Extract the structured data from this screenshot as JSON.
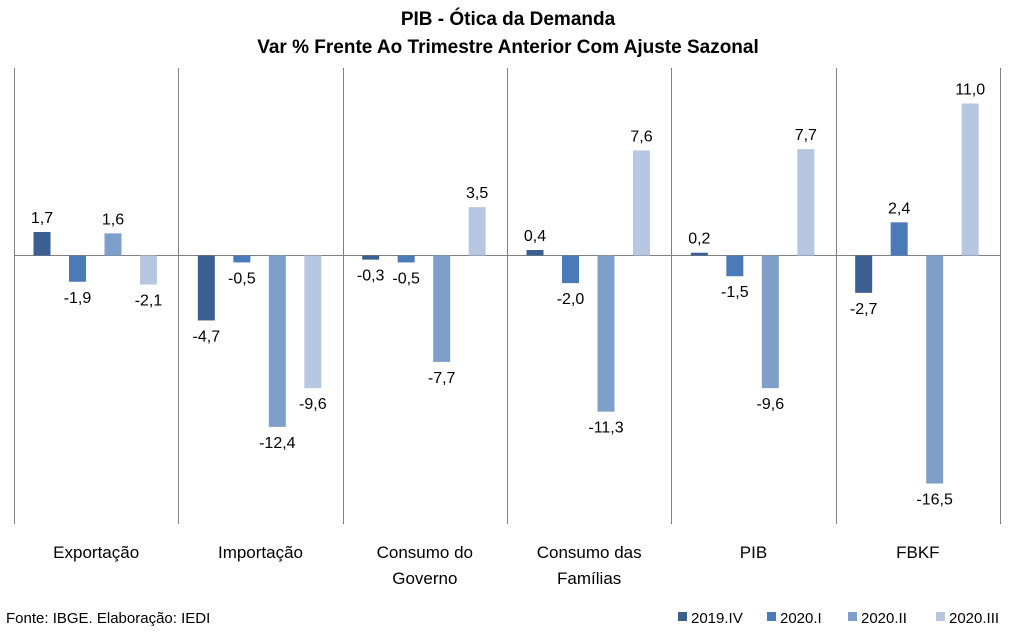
{
  "chart_data": {
    "type": "bar",
    "title": "PIB - Ótica da Demanda",
    "subtitle": "Var % Frente Ao Trimestre Anterior Com Ajuste Sazonal",
    "categories": [
      [
        "Exportação"
      ],
      [
        "Importação"
      ],
      [
        "Consumo do",
        "Governo"
      ],
      [
        "Consumo das",
        "Famílias"
      ],
      [
        "PIB"
      ],
      [
        "FBKF"
      ]
    ],
    "series": [
      {
        "name": "2019.IV",
        "color": "#3b5f91",
        "values": [
          1.7,
          -4.7,
          -0.3,
          0.4,
          0.2,
          -2.7
        ],
        "labels": [
          "1,7",
          "-4,7",
          "-0,3",
          "0,4",
          "0,2",
          "-2,7"
        ]
      },
      {
        "name": "2020.I",
        "color": "#4a7ab8",
        "values": [
          -1.9,
          -0.5,
          -0.5,
          -2.0,
          -1.5,
          2.4
        ],
        "labels": [
          "-1,9",
          "-0,5",
          "-0,5",
          "-2,0",
          "-1,5",
          "2,4"
        ]
      },
      {
        "name": "2020.II",
        "color": "#7f9fcb",
        "values": [
          1.6,
          -12.4,
          -7.7,
          -11.3,
          -9.6,
          -16.5
        ],
        "labels": [
          "1,6",
          "-12,4",
          "-7,7",
          "-11,3",
          "-9,6",
          "-16,5"
        ]
      },
      {
        "name": "2020.III",
        "color": "#b7c6e1",
        "values": [
          -2.1,
          -9.6,
          3.5,
          7.6,
          7.7,
          11.0
        ],
        "labels": [
          "-2,1",
          "-9,6",
          "3,5",
          "7,6",
          "7,7",
          "11,0"
        ]
      }
    ],
    "legend_position": "bottom-right",
    "grid": false
  },
  "footer": {
    "source": "Fonte: IBGE. Elaboração: IEDI"
  }
}
